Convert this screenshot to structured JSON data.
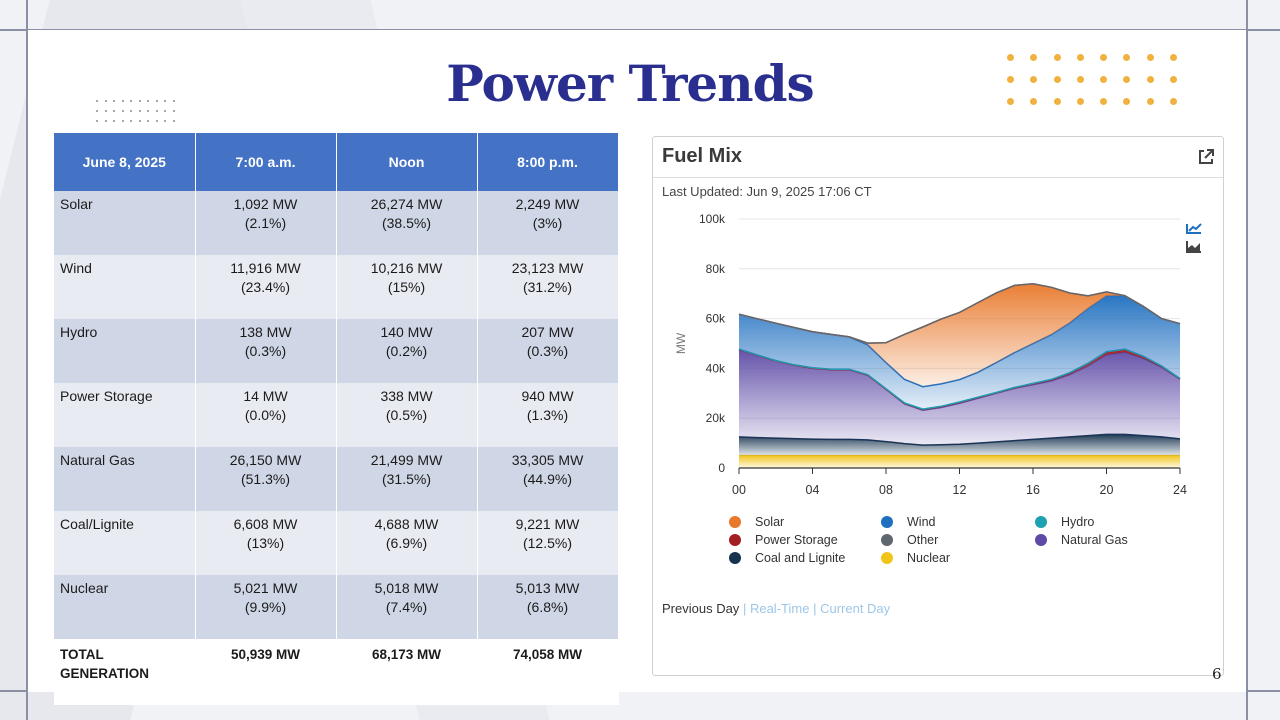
{
  "slide": {
    "title": "Power Trends",
    "page_number": "6"
  },
  "table": {
    "headers": [
      "June 8, 2025",
      "7:00 a.m.",
      "Noon",
      "8:00 p.m."
    ],
    "rows": [
      {
        "label": "Solar",
        "cells": [
          [
            "1,092 MW",
            "(2.1%)"
          ],
          [
            "26,274 MW",
            "(38.5%)"
          ],
          [
            "2,249 MW",
            "(3%)"
          ]
        ]
      },
      {
        "label": "Wind",
        "cells": [
          [
            "11,916 MW",
            "(23.4%)"
          ],
          [
            "10,216 MW",
            "(15%)"
          ],
          [
            "23,123 MW",
            "(31.2%)"
          ]
        ]
      },
      {
        "label": "Hydro",
        "cells": [
          [
            "138 MW",
            "(0.3%)"
          ],
          [
            "140 MW",
            "(0.2%)"
          ],
          [
            "207 MW",
            "(0.3%)"
          ]
        ]
      },
      {
        "label": "Power Storage",
        "cells": [
          [
            "14 MW",
            "(0.0%)"
          ],
          [
            "338 MW",
            "(0.5%)"
          ],
          [
            "940 MW",
            "(1.3%)"
          ]
        ]
      },
      {
        "label": "Natural Gas",
        "cells": [
          [
            "26,150 MW",
            "(51.3%)"
          ],
          [
            "21,499 MW",
            "(31.5%)"
          ],
          [
            "33,305 MW",
            "(44.9%)"
          ]
        ]
      },
      {
        "label": "Coal/Lignite",
        "cells": [
          [
            "6,608 MW",
            "(13%)"
          ],
          [
            "4,688 MW",
            "(6.9%)"
          ],
          [
            "9,221 MW",
            "(12.5%)"
          ]
        ]
      },
      {
        "label": "Nuclear",
        "cells": [
          [
            "5,021 MW",
            "(9.9%)"
          ],
          [
            "5,018 MW",
            "(7.4%)"
          ],
          [
            "5,013 MW",
            "(6.8%)"
          ]
        ]
      }
    ],
    "total": {
      "label_line1": "TOTAL",
      "label_line2": "GENERATION",
      "cells": [
        "50,939 MW",
        "68,173 MW",
        "74,058 MW"
      ]
    }
  },
  "fuel_mix": {
    "title": "Fuel Mix",
    "last_updated": "Last Updated: Jun 9, 2025 17:06 CT",
    "icons": [
      "external-link-icon",
      "line-chart-icon",
      "area-chart-icon"
    ],
    "legend": [
      {
        "name": "Solar",
        "color": "#e8782a"
      },
      {
        "name": "Wind",
        "color": "#1f6fc0"
      },
      {
        "name": "Hydro",
        "color": "#1fa2b0"
      },
      {
        "name": "Power Storage",
        "color": "#a31e22"
      },
      {
        "name": "Other",
        "color": "#5f6670"
      },
      {
        "name": "Natural Gas",
        "color": "#5e4aa6"
      },
      {
        "name": "Coal and Lignite",
        "color": "#15324f"
      },
      {
        "name": "Nuclear",
        "color": "#f2c418"
      }
    ],
    "links": {
      "active": "Previous Day",
      "realtime": "Real-Time",
      "current": "Current Day",
      "separator": "|"
    }
  },
  "chart_data": {
    "type": "area",
    "ylabel": "MW",
    "xlabel": "",
    "ylim": [
      0,
      100000
    ],
    "xlim": [
      0,
      24
    ],
    "yticks": [
      0,
      20000,
      40000,
      60000,
      80000,
      100000
    ],
    "ytick_labels": [
      "0",
      "20k",
      "40k",
      "60k",
      "80k",
      "100k"
    ],
    "xticks": [
      0,
      4,
      8,
      12,
      16,
      20,
      24
    ],
    "xtick_labels": [
      "00",
      "04",
      "08",
      "12",
      "16",
      "20",
      "24"
    ],
    "grid": true,
    "x": [
      0,
      1,
      2,
      3,
      4,
      5,
      6,
      7,
      8,
      9,
      10,
      11,
      12,
      13,
      14,
      15,
      16,
      17,
      18,
      19,
      20,
      21,
      22,
      23,
      24
    ],
    "series": [
      {
        "name": "Nuclear",
        "color": "#f2c418",
        "values": [
          5000,
          5000,
          5000,
          5000,
          5000,
          5000,
          5000,
          5000,
          5000,
          5000,
          5000,
          5000,
          5000,
          5000,
          5000,
          5000,
          5000,
          5000,
          5000,
          5000,
          5000,
          5000,
          5000,
          5000,
          5000
        ]
      },
      {
        "name": "Coal and Lignite",
        "color": "#15324f",
        "values": [
          7500,
          7200,
          7000,
          6800,
          6600,
          6500,
          6500,
          6300,
          5600,
          4800,
          4200,
          4300,
          4500,
          5000,
          5500,
          6000,
          6500,
          7000,
          7500,
          8000,
          8500,
          8500,
          8000,
          7500,
          6700
        ]
      },
      {
        "name": "Natural Gas",
        "color": "#5e4aa6",
        "values": [
          35000,
          33000,
          31000,
          29500,
          28500,
          28000,
          28000,
          26000,
          21000,
          16000,
          14000,
          15000,
          16500,
          18000,
          19500,
          21000,
          22000,
          23000,
          25000,
          28000,
          32000,
          33000,
          31000,
          28000,
          24000
        ]
      },
      {
        "name": "Power Storage",
        "color": "#a31e22",
        "values": [
          100,
          50,
          0,
          0,
          0,
          0,
          0,
          20,
          100,
          200,
          300,
          350,
          350,
          300,
          200,
          200,
          300,
          400,
          600,
          900,
          1000,
          1000,
          700,
          300,
          100
        ]
      },
      {
        "name": "Hydro",
        "color": "#1fa2b0",
        "values": [
          150,
          150,
          150,
          140,
          140,
          140,
          140,
          140,
          140,
          140,
          140,
          140,
          140,
          140,
          140,
          150,
          160,
          170,
          180,
          200,
          210,
          210,
          200,
          180,
          160
        ]
      },
      {
        "name": "Wind",
        "color": "#1f6fc0",
        "values": [
          14000,
          14500,
          15000,
          15000,
          14500,
          14000,
          13000,
          12000,
          10500,
          9500,
          9000,
          9000,
          9000,
          10000,
          12000,
          14000,
          16000,
          18000,
          20000,
          22000,
          22500,
          21500,
          20000,
          19000,
          22000
        ]
      },
      {
        "name": "Solar",
        "color": "#e8782a",
        "values": [
          0,
          0,
          0,
          0,
          0,
          0,
          0,
          700,
          8000,
          18000,
          24000,
          26000,
          27000,
          28000,
          28000,
          27000,
          24000,
          19000,
          12000,
          5000,
          1500,
          0,
          0,
          0,
          0
        ]
      },
      {
        "name": "Other",
        "color": "#5f6670",
        "values": [
          0,
          0,
          0,
          0,
          0,
          0,
          0,
          0,
          0,
          0,
          0,
          0,
          0,
          0,
          0,
          0,
          0,
          0,
          0,
          0,
          0,
          0,
          0,
          0,
          0
        ]
      }
    ]
  }
}
